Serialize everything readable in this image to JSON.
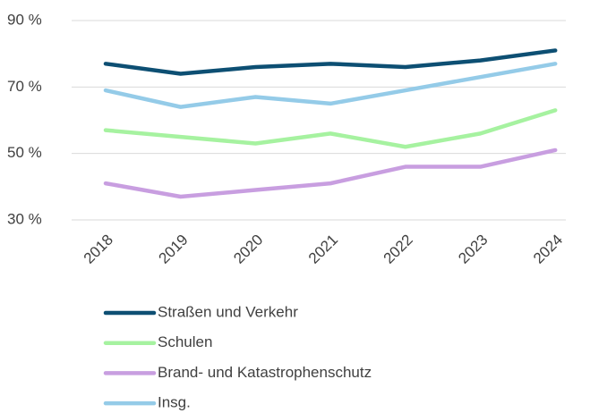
{
  "chart_data": {
    "type": "line",
    "categories": [
      "2018",
      "2019",
      "2020",
      "2021",
      "2022",
      "2023",
      "2024"
    ],
    "series": [
      {
        "name": "Straßen und Verkehr",
        "color": "#0d4f73",
        "values": [
          77,
          74,
          76,
          77,
          76,
          78,
          81
        ]
      },
      {
        "name": "Schulen",
        "color": "#a6f2a0",
        "values": [
          57,
          55,
          53,
          56,
          52,
          56,
          63
        ]
      },
      {
        "name": "Brand- und Katastrophenschutz",
        "color": "#c89ee0",
        "values": [
          41,
          37,
          39,
          41,
          46,
          46,
          51
        ]
      },
      {
        "name": "Insg.",
        "color": "#94cbe8",
        "values": [
          69,
          64,
          67,
          65,
          69,
          73,
          77
        ]
      }
    ],
    "ylim": [
      30,
      90
    ],
    "yticks": [
      {
        "value": 30,
        "label": "30 %"
      },
      {
        "value": 50,
        "label": "50 %"
      },
      {
        "value": 70,
        "label": "70 %"
      },
      {
        "value": 90,
        "label": "90 %"
      }
    ],
    "grid": true,
    "legend": "bottom"
  }
}
